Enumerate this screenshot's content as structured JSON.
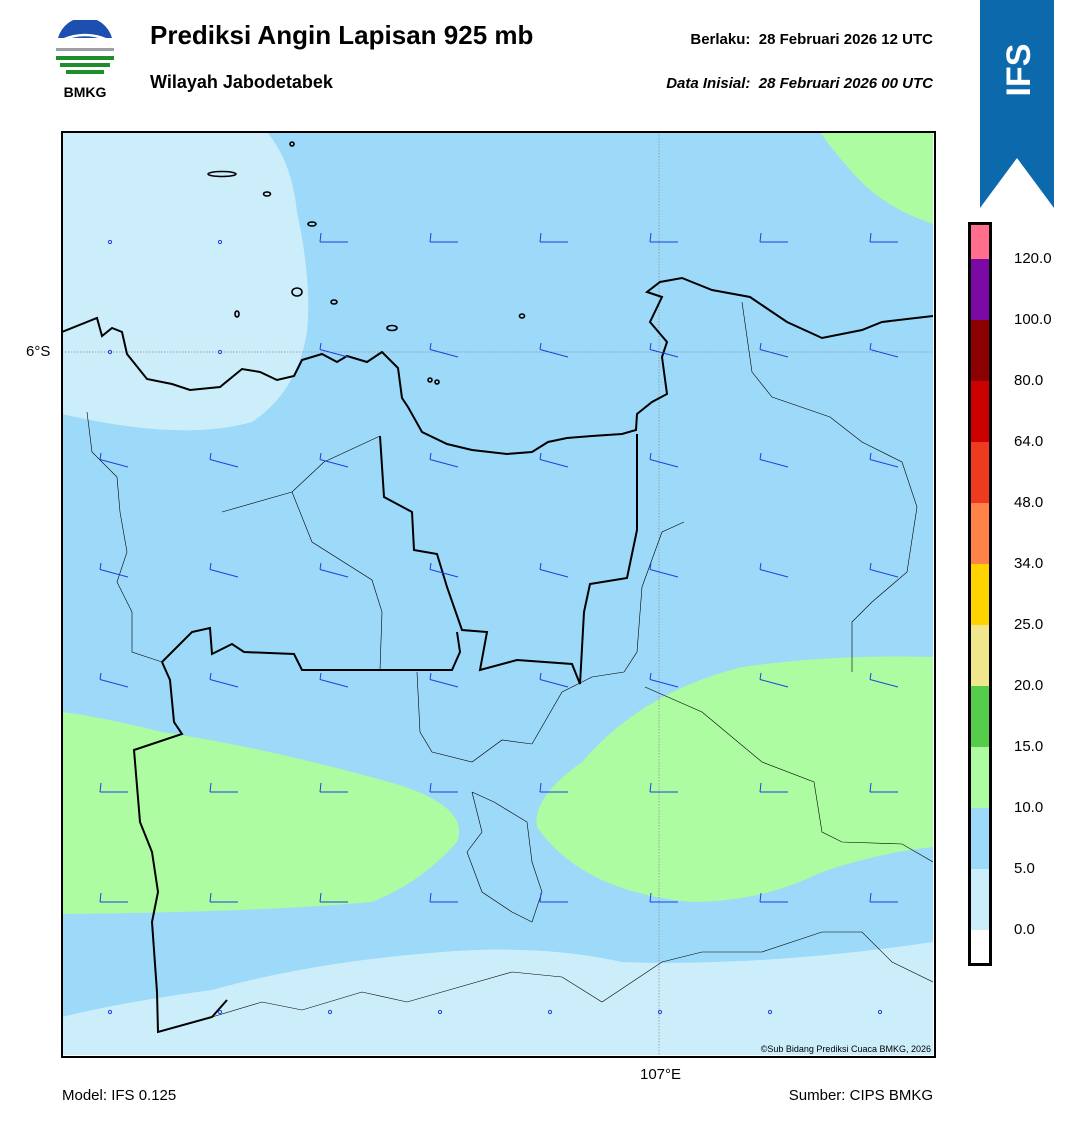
{
  "header": {
    "title": "Prediksi Angin Lapisan 925 mb",
    "region": "Wilayah Jabodetabek",
    "valid_label": "Berlaku:",
    "valid_time": "28 Februari 2026 12 UTC",
    "init_label": "Data Inisial:",
    "init_time": "28 Februari 2026 00 UTC"
  },
  "logo": {
    "text": "BMKG",
    "icon": "bmkg-logo-icon"
  },
  "banner": {
    "text": "IFS",
    "color": "#0c6aac"
  },
  "map": {
    "lat_label": "6°S",
    "lon_label": "107°E",
    "copyright": "©Sub Bidang Prediksi Cuaca BMKG, 2026",
    "fill_colors": {
      "calm": "#cceefb",
      "light": "#9dd9f8",
      "moderate": "#adfca2"
    },
    "barb_color": "#1e3fe0"
  },
  "colorbar": {
    "ticks": [
      "0.0",
      "5.0",
      "10.0",
      "15.0",
      "20.0",
      "25.0",
      "34.0",
      "48.0",
      "64.0",
      "80.0",
      "100.0",
      "120.0"
    ],
    "colors": [
      "#ffffff",
      "#cceefb",
      "#9dd9f8",
      "#adfca2",
      "#55cd4b",
      "#f0e68c",
      "#ffd300",
      "#ff8247",
      "#ee3a1f",
      "#cd0000",
      "#8b0000",
      "#7a0aa3",
      "#ff6e8c"
    ]
  },
  "footer": {
    "model": "Model: IFS 0.125",
    "source": "Sumber: CIPS BMKG"
  }
}
